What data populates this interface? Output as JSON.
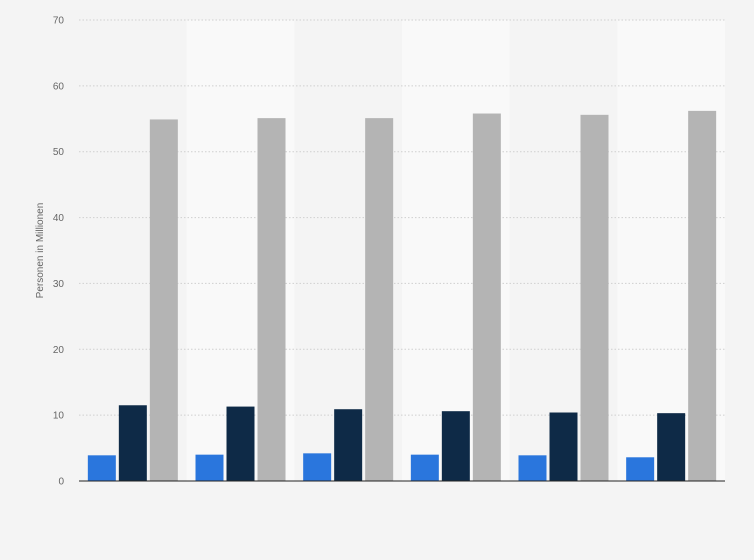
{
  "chart_data": {
    "type": "bar",
    "title": "",
    "xlabel": "",
    "ylabel": "Personen in Millionen",
    "ylim": [
      0,
      70
    ],
    "yticks": [
      0,
      10,
      20,
      30,
      40,
      50,
      60,
      70
    ],
    "categories": [
      "",
      "",
      "",
      "",
      "",
      ""
    ],
    "series": [
      {
        "color": "#2a76dd",
        "values": [
          3.9,
          4.0,
          4.2,
          4.0,
          3.9,
          3.6
        ]
      },
      {
        "color": "#0e2a47",
        "values": [
          11.5,
          11.3,
          10.9,
          10.6,
          10.4,
          10.3
        ]
      },
      {
        "color": "#b4b4b4",
        "values": [
          54.9,
          55.1,
          55.1,
          55.8,
          55.6,
          56.2
        ]
      }
    ],
    "grid": true,
    "legend": "none"
  },
  "colors": {
    "background": "#f4f4f4",
    "band_alt": "#f9f9f9",
    "gridline": "#cfcfcf",
    "axis": "#222222"
  }
}
